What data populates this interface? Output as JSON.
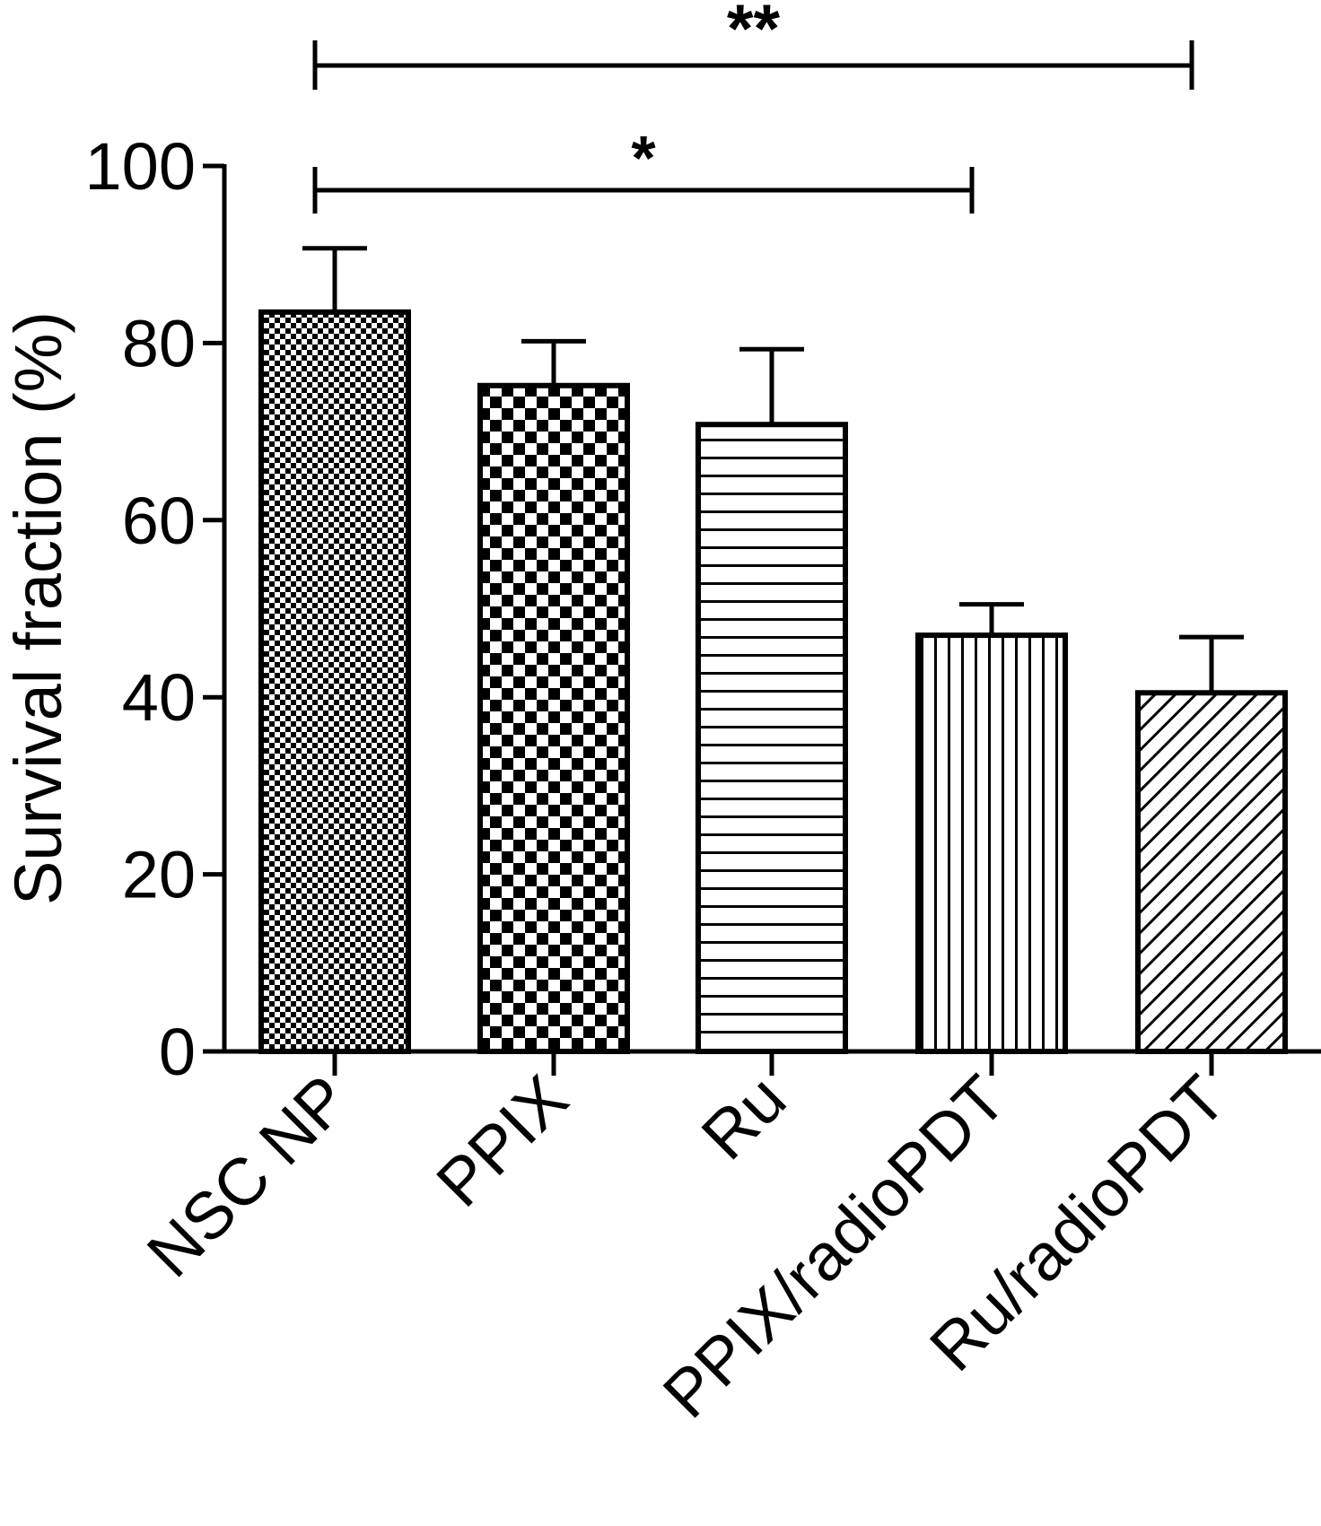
{
  "chart_data": {
    "type": "bar",
    "categories": [
      "NSC NP",
      "PPIX",
      "Ru",
      "PPIX/radioPDT",
      "Ru/radioPDT"
    ],
    "values": [
      83.5,
      75.2,
      70.8,
      47.0,
      40.5
    ],
    "errors": [
      7.2,
      5.0,
      8.5,
      3.5,
      6.3
    ],
    "patterns": [
      "fine-checker",
      "coarse-checker",
      "horizontal-lines",
      "vertical-lines",
      "diagonal-lines"
    ],
    "title": "",
    "xlabel": "",
    "ylabel": "Survival fraction (%)",
    "ylim": [
      0,
      100
    ],
    "yticks": [
      0,
      20,
      40,
      60,
      80,
      100
    ],
    "grid": false,
    "significance": [
      {
        "from": "NSC NP",
        "to": "Ru/radioPDT",
        "label": "**"
      },
      {
        "from": "NSC NP",
        "to": "PPIX/radioPDT",
        "label": "*"
      }
    ],
    "colors": {
      "stroke": "#000000",
      "fill": "#ffffff"
    }
  }
}
